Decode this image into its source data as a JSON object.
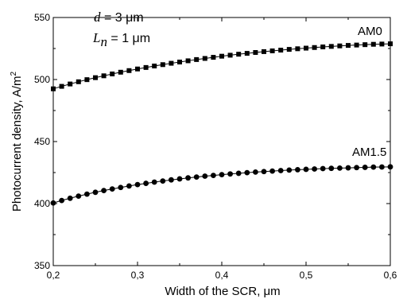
{
  "chart_data": {
    "type": "line",
    "xlabel": "Width of the SCR, μm",
    "ylabel": "Photocurrent density, A/m",
    "ylabel_superscript": "2",
    "xlim": [
      0.2,
      0.6
    ],
    "ylim": [
      350,
      550
    ],
    "xticks": [
      0.2,
      0.3,
      0.4,
      0.5,
      0.6
    ],
    "xtick_labels": [
      "0,2",
      "0,3",
      "0,4",
      "0,5",
      "0,6"
    ],
    "yticks": [
      350,
      400,
      450,
      500,
      550
    ],
    "ytick_labels": [
      "350",
      "400",
      "450",
      "500",
      "550"
    ],
    "grid": false,
    "series": [
      {
        "name": "AM0",
        "marker": "square",
        "x": [
          0.2,
          0.21,
          0.22,
          0.23,
          0.24,
          0.25,
          0.26,
          0.27,
          0.28,
          0.29,
          0.3,
          0.31,
          0.32,
          0.33,
          0.34,
          0.35,
          0.36,
          0.37,
          0.38,
          0.39,
          0.4,
          0.41,
          0.42,
          0.43,
          0.44,
          0.45,
          0.46,
          0.47,
          0.48,
          0.49,
          0.5,
          0.51,
          0.52,
          0.53,
          0.54,
          0.55,
          0.56,
          0.57,
          0.58,
          0.59,
          0.6
        ],
        "y": [
          492.5,
          494.5,
          496.4,
          498.2,
          499.9,
          501.5,
          503.0,
          504.5,
          505.9,
          507.2,
          508.5,
          509.7,
          510.9,
          512.0,
          513.1,
          514.1,
          515.1,
          516.1,
          517.0,
          517.9,
          518.8,
          519.6,
          520.4,
          521.1,
          521.8,
          522.5,
          523.1,
          523.7,
          524.3,
          524.8,
          525.3,
          525.8,
          526.3,
          526.7,
          527.1,
          527.5,
          527.8,
          528.1,
          528.4,
          528.6,
          528.8
        ]
      },
      {
        "name": "AM1.5",
        "marker": "circle",
        "x": [
          0.2,
          0.21,
          0.22,
          0.23,
          0.24,
          0.25,
          0.26,
          0.27,
          0.28,
          0.29,
          0.3,
          0.31,
          0.32,
          0.33,
          0.34,
          0.35,
          0.36,
          0.37,
          0.38,
          0.39,
          0.4,
          0.41,
          0.42,
          0.43,
          0.44,
          0.45,
          0.46,
          0.47,
          0.48,
          0.49,
          0.5,
          0.51,
          0.52,
          0.53,
          0.54,
          0.55,
          0.56,
          0.57,
          0.58,
          0.59,
          0.6
        ],
        "y": [
          400.5,
          402.5,
          404.3,
          406.0,
          407.6,
          409.1,
          410.5,
          411.8,
          413.0,
          414.2,
          415.3,
          416.3,
          417.3,
          418.2,
          419.1,
          419.9,
          420.7,
          421.4,
          422.1,
          422.7,
          423.3,
          423.9,
          424.4,
          424.9,
          425.4,
          425.8,
          426.2,
          426.6,
          427.0,
          427.3,
          427.6,
          427.9,
          428.2,
          428.4,
          428.6,
          428.8,
          429.0,
          429.2,
          429.4,
          429.5,
          429.6
        ]
      }
    ]
  },
  "annotation": {
    "line1_symbol": "d",
    "line1_value": " = 3 μm",
    "line2_symbol": "L",
    "line2_subscript": "n",
    "line2_value": " = 1 μm"
  }
}
